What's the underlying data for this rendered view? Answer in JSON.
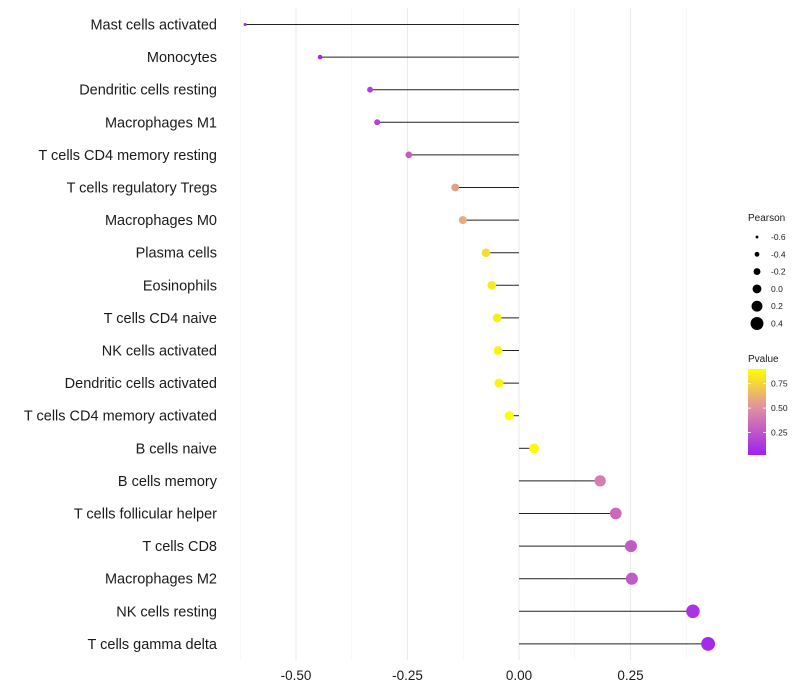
{
  "chart_data": {
    "type": "lollipop",
    "title": "",
    "xlabel": "",
    "ylabel": "",
    "xlim": [
      -0.625,
      0.45
    ],
    "x_ticks": [
      -0.5,
      -0.25,
      0.0,
      0.25
    ],
    "x_tick_labels": [
      "-0.50",
      "-0.25",
      "0.00",
      "0.25"
    ],
    "grid": true,
    "categories": [
      "Mast cells activated",
      "Monocytes",
      "Dendritic cells resting",
      "Macrophages M1",
      "T cells CD4 memory resting",
      "T cells regulatory  Tregs ",
      "Macrophages M0",
      "Plasma cells",
      "Eosinophils",
      "T cells CD4 naive",
      "NK cells activated",
      "Dendritic cells activated",
      "T cells CD4 memory activated",
      "B cells naive",
      "B cells memory",
      "T cells follicular helper",
      "T cells CD8",
      "Macrophages M2",
      "NK cells resting",
      "T cells gamma delta"
    ],
    "series": [
      {
        "name": "Pearson",
        "values": [
          -0.614,
          -0.446,
          -0.334,
          -0.318,
          -0.247,
          -0.143,
          -0.126,
          -0.074,
          -0.061,
          -0.049,
          -0.047,
          -0.045,
          -0.022,
          0.034,
          0.182,
          0.217,
          0.251,
          0.253,
          0.39,
          0.424
        ]
      },
      {
        "name": "Pvalue",
        "values": [
          0.02,
          0.05,
          0.15,
          0.16,
          0.28,
          0.55,
          0.6,
          0.78,
          0.82,
          0.84,
          0.85,
          0.86,
          0.92,
          0.88,
          0.42,
          0.33,
          0.28,
          0.27,
          0.1,
          0.06
        ]
      }
    ],
    "legends": {
      "size": {
        "title": "Pearson",
        "values": [
          -0.6,
          -0.4,
          -0.2,
          0.0,
          0.2,
          0.4
        ],
        "labels": [
          "-0.6",
          "-0.4",
          "-0.2",
          "0.0",
          "0.2",
          "0.4"
        ]
      },
      "color": {
        "title": "Pvalue",
        "range": [
          0.02,
          0.9
        ],
        "ticks": [
          0.25,
          0.5,
          0.75
        ],
        "tick_labels": [
          "0.25",
          "0.50",
          "0.75"
        ],
        "low_color": "#A020F0",
        "mid_color": "#E090A0",
        "high_color": "#FFFF00"
      },
      "placement": "right"
    }
  }
}
